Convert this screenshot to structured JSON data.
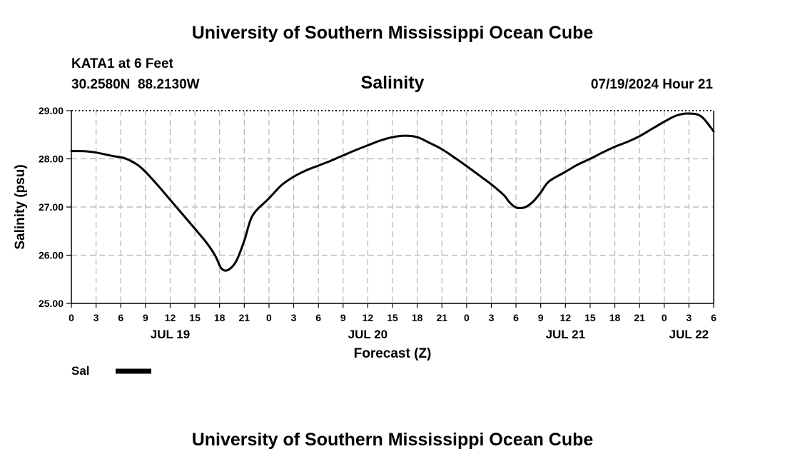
{
  "header": {
    "top_title": "University of Southern Mississippi Ocean Cube",
    "station": "KATA1 at 6 Feet",
    "coords": "30.2580N  88.2130W",
    "chart_title": "Salinity",
    "timestamp": "07/19/2024 Hour 21",
    "bottom_title": "University of Southern Mississippi Ocean Cube"
  },
  "legend": {
    "label": "Sal",
    "color": "#000000"
  },
  "chart_data": {
    "type": "line",
    "title": "Salinity",
    "xlabel": "Forecast (Z)",
    "ylabel": "Salinity (psu)",
    "xlim": [
      0,
      78
    ],
    "ylim": [
      25,
      29
    ],
    "y_ticks": [
      "25.00",
      "26.00",
      "27.00",
      "28.00",
      "29.00"
    ],
    "x_tick_labels": [
      "0",
      "3",
      "6",
      "9",
      "12",
      "15",
      "18",
      "21",
      "0",
      "3",
      "6",
      "9",
      "12",
      "15",
      "18",
      "21",
      "0",
      "3",
      "6",
      "9",
      "12",
      "15",
      "18",
      "21",
      "0",
      "3",
      "6"
    ],
    "day_labels": [
      {
        "label": "JUL 19",
        "x": 12
      },
      {
        "label": "JUL 20",
        "x": 36
      },
      {
        "label": "JUL 21",
        "x": 60
      },
      {
        "label": "JUL 22",
        "x": 75
      }
    ],
    "grid": true,
    "series": [
      {
        "name": "Sal",
        "color": "#000000",
        "x": [
          0,
          1.5,
          3,
          5,
          6.5,
          8,
          9,
          10.5,
          12,
          13.5,
          15,
          16.5,
          17.5,
          18.2,
          19,
          20,
          21,
          22,
          24,
          25.5,
          27,
          28.5,
          30,
          31.5,
          33,
          34.5,
          36,
          37.5,
          39,
          40.5,
          42,
          43.5,
          45,
          46.5,
          48,
          49.5,
          51,
          52.5,
          53.2,
          54,
          55,
          56,
          57,
          58,
          60,
          61.5,
          63,
          64.5,
          66,
          67.5,
          69,
          70.5,
          72,
          73.5,
          75,
          76.5,
          78
        ],
        "values": [
          28.16,
          28.16,
          28.13,
          28.06,
          28.01,
          27.88,
          27.73,
          27.45,
          27.15,
          26.85,
          26.55,
          26.24,
          25.98,
          25.73,
          25.69,
          25.87,
          26.3,
          26.82,
          27.18,
          27.45,
          27.63,
          27.76,
          27.86,
          27.96,
          28.07,
          28.18,
          28.28,
          28.38,
          28.45,
          28.48,
          28.45,
          28.33,
          28.2,
          28.03,
          27.85,
          27.66,
          27.47,
          27.25,
          27.1,
          26.99,
          26.99,
          27.1,
          27.3,
          27.53,
          27.73,
          27.88,
          28.0,
          28.13,
          28.25,
          28.35,
          28.47,
          28.62,
          28.77,
          28.9,
          28.94,
          28.88,
          28.57
        ]
      }
    ]
  }
}
